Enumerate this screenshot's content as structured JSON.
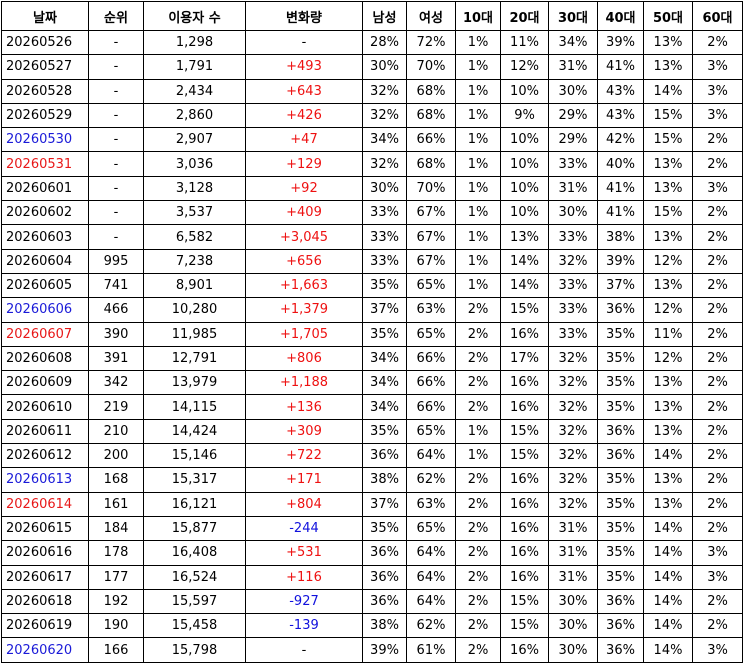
{
  "table": {
    "header": [
      "날짜",
      "순위",
      "이용자 수",
      "변화량",
      "남성",
      "여성",
      "10대",
      "20대",
      "30대",
      "40대",
      "50대",
      "60대"
    ],
    "rows": [
      [
        "20260526",
        "-",
        "1,298",
        "-",
        "28%",
        "72%",
        "1%",
        "11%",
        "34%",
        "39%",
        "13%",
        "2%"
      ],
      [
        "20260527",
        "-",
        "1,791",
        "+493",
        "30%",
        "70%",
        "1%",
        "12%",
        "31%",
        "41%",
        "13%",
        "3%"
      ],
      [
        "20260528",
        "-",
        "2,434",
        "+643",
        "32%",
        "68%",
        "1%",
        "10%",
        "30%",
        "43%",
        "14%",
        "3%"
      ],
      [
        "20260529",
        "-",
        "2,860",
        "+426",
        "32%",
        "68%",
        "1%",
        "9%",
        "29%",
        "43%",
        "15%",
        "3%"
      ],
      [
        "20260530",
        "-",
        "2,907",
        "+47",
        "34%",
        "66%",
        "1%",
        "10%",
        "29%",
        "42%",
        "15%",
        "2%"
      ],
      [
        "20260531",
        "-",
        "3,036",
        "+129",
        "32%",
        "68%",
        "1%",
        "10%",
        "33%",
        "40%",
        "13%",
        "2%"
      ],
      [
        "20260601",
        "-",
        "3,128",
        "+92",
        "30%",
        "70%",
        "1%",
        "10%",
        "31%",
        "41%",
        "13%",
        "3%"
      ],
      [
        "20260602",
        "-",
        "3,537",
        "+409",
        "33%",
        "67%",
        "1%",
        "10%",
        "30%",
        "41%",
        "15%",
        "2%"
      ],
      [
        "20260603",
        "-",
        "6,582",
        "+3,045",
        "33%",
        "67%",
        "1%",
        "13%",
        "33%",
        "38%",
        "13%",
        "2%"
      ],
      [
        "20260604",
        "995",
        "7,238",
        "+656",
        "33%",
        "67%",
        "1%",
        "14%",
        "32%",
        "39%",
        "12%",
        "2%"
      ],
      [
        "20260605",
        "741",
        "8,901",
        "+1,663",
        "35%",
        "65%",
        "1%",
        "14%",
        "33%",
        "37%",
        "13%",
        "2%"
      ],
      [
        "20260606",
        "466",
        "10,280",
        "+1,379",
        "37%",
        "63%",
        "2%",
        "15%",
        "33%",
        "36%",
        "12%",
        "2%"
      ],
      [
        "20260607",
        "390",
        "11,985",
        "+1,705",
        "35%",
        "65%",
        "2%",
        "16%",
        "33%",
        "35%",
        "11%",
        "2%"
      ],
      [
        "20260608",
        "391",
        "12,791",
        "+806",
        "34%",
        "66%",
        "2%",
        "17%",
        "32%",
        "35%",
        "12%",
        "2%"
      ],
      [
        "20260609",
        "342",
        "13,979",
        "+1,188",
        "34%",
        "66%",
        "2%",
        "16%",
        "32%",
        "35%",
        "13%",
        "2%"
      ],
      [
        "20260610",
        "219",
        "14,115",
        "+136",
        "34%",
        "66%",
        "2%",
        "16%",
        "32%",
        "35%",
        "13%",
        "2%"
      ],
      [
        "20260611",
        "210",
        "14,424",
        "+309",
        "35%",
        "65%",
        "1%",
        "15%",
        "32%",
        "36%",
        "13%",
        "2%"
      ],
      [
        "20260612",
        "200",
        "15,146",
        "+722",
        "36%",
        "64%",
        "1%",
        "15%",
        "32%",
        "36%",
        "14%",
        "2%"
      ],
      [
        "20260613",
        "168",
        "15,317",
        "+171",
        "38%",
        "62%",
        "2%",
        "16%",
        "32%",
        "35%",
        "13%",
        "2%"
      ],
      [
        "20260614",
        "161",
        "16,121",
        "+804",
        "37%",
        "63%",
        "2%",
        "16%",
        "32%",
        "35%",
        "13%",
        "2%"
      ],
      [
        "20260615",
        "184",
        "15,877",
        "-244",
        "35%",
        "65%",
        "2%",
        "16%",
        "31%",
        "35%",
        "14%",
        "2%"
      ],
      [
        "20260616",
        "178",
        "16,408",
        "+531",
        "36%",
        "64%",
        "2%",
        "16%",
        "31%",
        "35%",
        "14%",
        "3%"
      ],
      [
        "20260617",
        "177",
        "16,524",
        "+116",
        "36%",
        "64%",
        "2%",
        "16%",
        "31%",
        "35%",
        "14%",
        "3%"
      ],
      [
        "20260618",
        "192",
        "15,597",
        "-927",
        "36%",
        "64%",
        "2%",
        "15%",
        "30%",
        "36%",
        "14%",
        "2%"
      ],
      [
        "20260619",
        "190",
        "15,458",
        "-139",
        "38%",
        "62%",
        "2%",
        "15%",
        "30%",
        "36%",
        "14%",
        "2%"
      ],
      [
        "20260620",
        "166",
        "15,798",
        "-",
        "39%",
        "61%",
        "2%",
        "16%",
        "30%",
        "36%",
        "14%",
        "3%"
      ]
    ]
  }
}
